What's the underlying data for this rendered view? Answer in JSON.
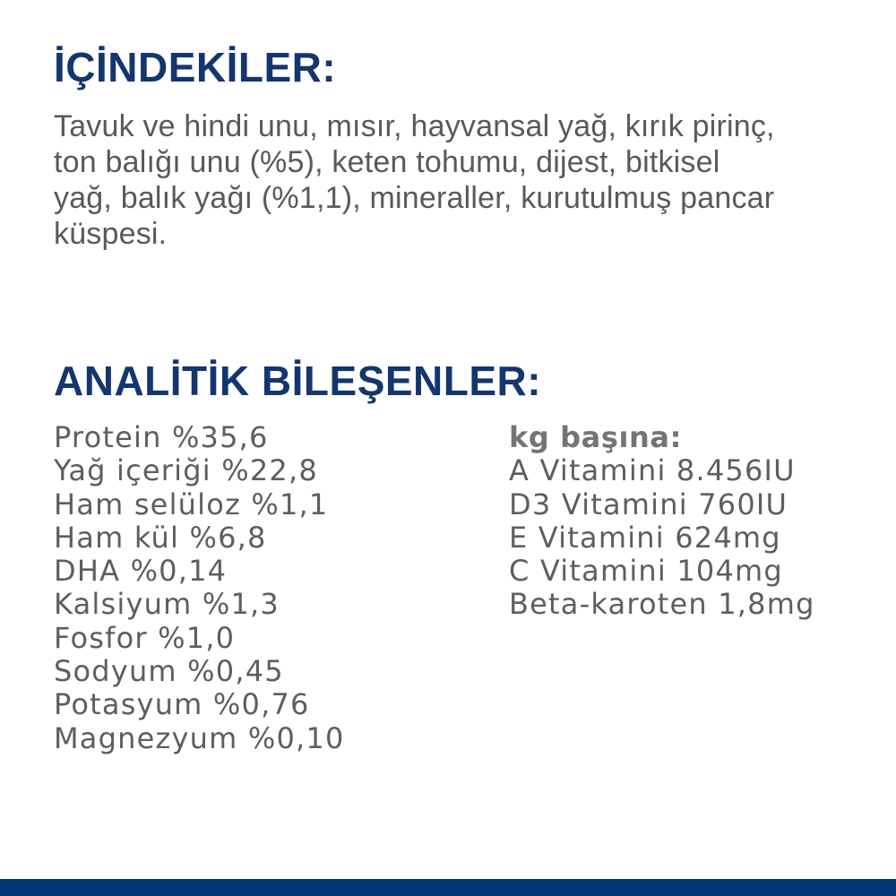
{
  "colors": {
    "heading_navy": "#14366e",
    "body_gray": "#58595b",
    "list_gray": "#5c5e60",
    "kg_gray": "#737477",
    "footer_navy": "#003777",
    "bg": "#ffffff"
  },
  "ingredients": {
    "heading": "İÇİNDEKİLER:",
    "body_lines": [
      "Tavuk ve hindi unu, mısır, hayvansal yağ, kırık pirinç,",
      "ton balığı unu (%5), keten tohumu, dijest, bitkisel",
      "yağ, balık yağı (%1,1), mineraller, kurutulmuş pancar",
      "küspesi."
    ]
  },
  "analytical": {
    "heading": "ANALİTİK BİLEŞENLER:",
    "components": [
      "Protein %35,6",
      "Yağ içeriği %22,8",
      "Ham selüloz %1,1",
      "Ham kül %6,8",
      "DHA %0,14",
      "Kalsiyum %1,3",
      "Fosfor %1,0",
      "Sodyum %0,45",
      "Potasyum %0,76",
      "Magnezyum %0,10"
    ],
    "per_kg_heading": "kg başına:",
    "per_kg_items": [
      "A Vitamini 8.456IU",
      "D3 Vitamini 760IU",
      "E Vitamini 624mg",
      "C Vitamini 104mg",
      "Beta-karoten 1,8mg"
    ]
  }
}
